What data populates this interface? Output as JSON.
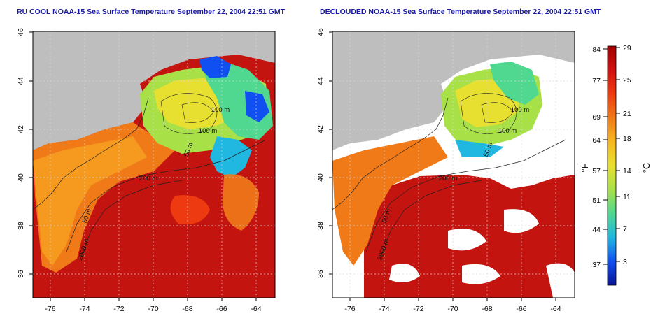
{
  "panels": [
    {
      "id": "left",
      "title": "RU COOL NOAA-15 Sea Surface Temperature September 22, 2004 22:51 GMT",
      "x_ticks": [
        "-76",
        "-74",
        "-72",
        "-70",
        "-68",
        "-66",
        "-64"
      ],
      "y_ticks": [
        "46",
        "44",
        "42",
        "40",
        "38",
        "36"
      ],
      "contour_labels": [
        "100 m",
        "100 m",
        "50 m",
        "200 m",
        "50 m",
        "2000 m"
      ]
    },
    {
      "id": "right",
      "title": "DECLOUDED NOAA-15 Sea Surface Temperature September 22, 2004 22:51 GMT",
      "x_ticks": [
        "-76",
        "-74",
        "-72",
        "-70",
        "-68",
        "-66",
        "-64"
      ],
      "y_ticks": [
        "46",
        "44",
        "42",
        "40",
        "38",
        "36"
      ],
      "contour_labels": [
        "100 m",
        "100 m",
        "50 m",
        "200 m",
        "50 m",
        "2000 m"
      ]
    }
  ],
  "colorbar": {
    "fahrenheit_unit": "°F",
    "celsius_unit": "°C",
    "fahrenheit_ticks": [
      "84",
      "77",
      "69",
      "64",
      "57",
      "51",
      "44",
      "37"
    ],
    "celsius_ticks": [
      "29",
      "25",
      "21",
      "18",
      "14",
      "11",
      "7",
      "3"
    ],
    "colors": [
      "#a00000",
      "#d01010",
      "#ee3a10",
      "#f07a18",
      "#f6b820",
      "#e8e030",
      "#a8e048",
      "#50d890",
      "#20b8e0",
      "#1050f0",
      "#0a1496"
    ]
  },
  "colors": {
    "land": "#bebebe",
    "cloud": "#ffffff",
    "title": "#1a1aa6"
  }
}
